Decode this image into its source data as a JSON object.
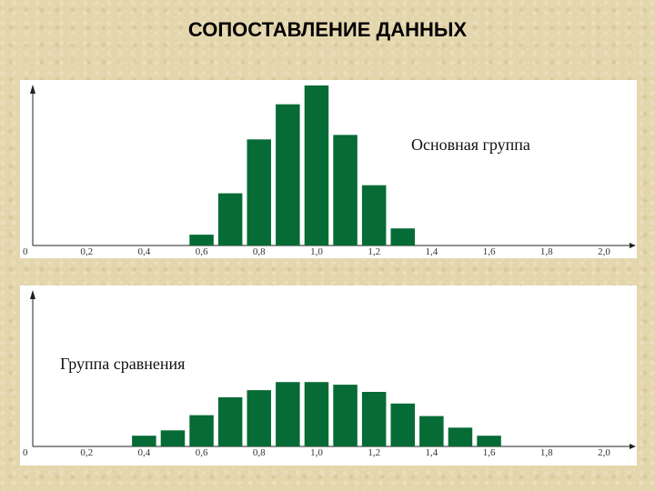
{
  "slide": {
    "title": "СОПОСТАВЛЕНИЕ ДАННЫХ"
  },
  "chart_data": [
    {
      "type": "bar",
      "title": "Основная группа",
      "x_ticks": [
        "0",
        "0,2",
        "0,4",
        "0,6",
        "0,8",
        "1,0",
        "1,2",
        "1,4",
        "1,6",
        "1,8",
        "2,0"
      ],
      "x": [
        0.6,
        0.7,
        0.8,
        0.9,
        1.0,
        1.1,
        1.2,
        1.3
      ],
      "values": [
        12,
        58,
        118,
        157,
        178,
        123,
        67,
        19
      ],
      "xlim": [
        0,
        2.0
      ],
      "ylim": [
        0,
        180
      ],
      "color": "#066b35",
      "grid": false,
      "legend": "none"
    },
    {
      "type": "bar",
      "title": "Группа сравнения",
      "x_ticks": [
        "0",
        "0,2",
        "0,4",
        "0,6",
        "0,8",
        "1,0",
        "1,2",
        "1,4",
        "1,6",
        "1,8",
        "2,0"
      ],
      "x": [
        0.4,
        0.5,
        0.6,
        0.7,
        0.8,
        0.9,
        1.0,
        1.1,
        1.2,
        1.3,
        1.4,
        1.5,
        1.6
      ],
      "values": [
        12,
        18,
        35,
        55,
        63,
        72,
        72,
        69,
        61,
        48,
        34,
        21,
        12
      ],
      "xlim": [
        0,
        2.0
      ],
      "ylim": [
        0,
        180
      ],
      "color": "#066b35",
      "grid": false,
      "legend": "none"
    }
  ]
}
